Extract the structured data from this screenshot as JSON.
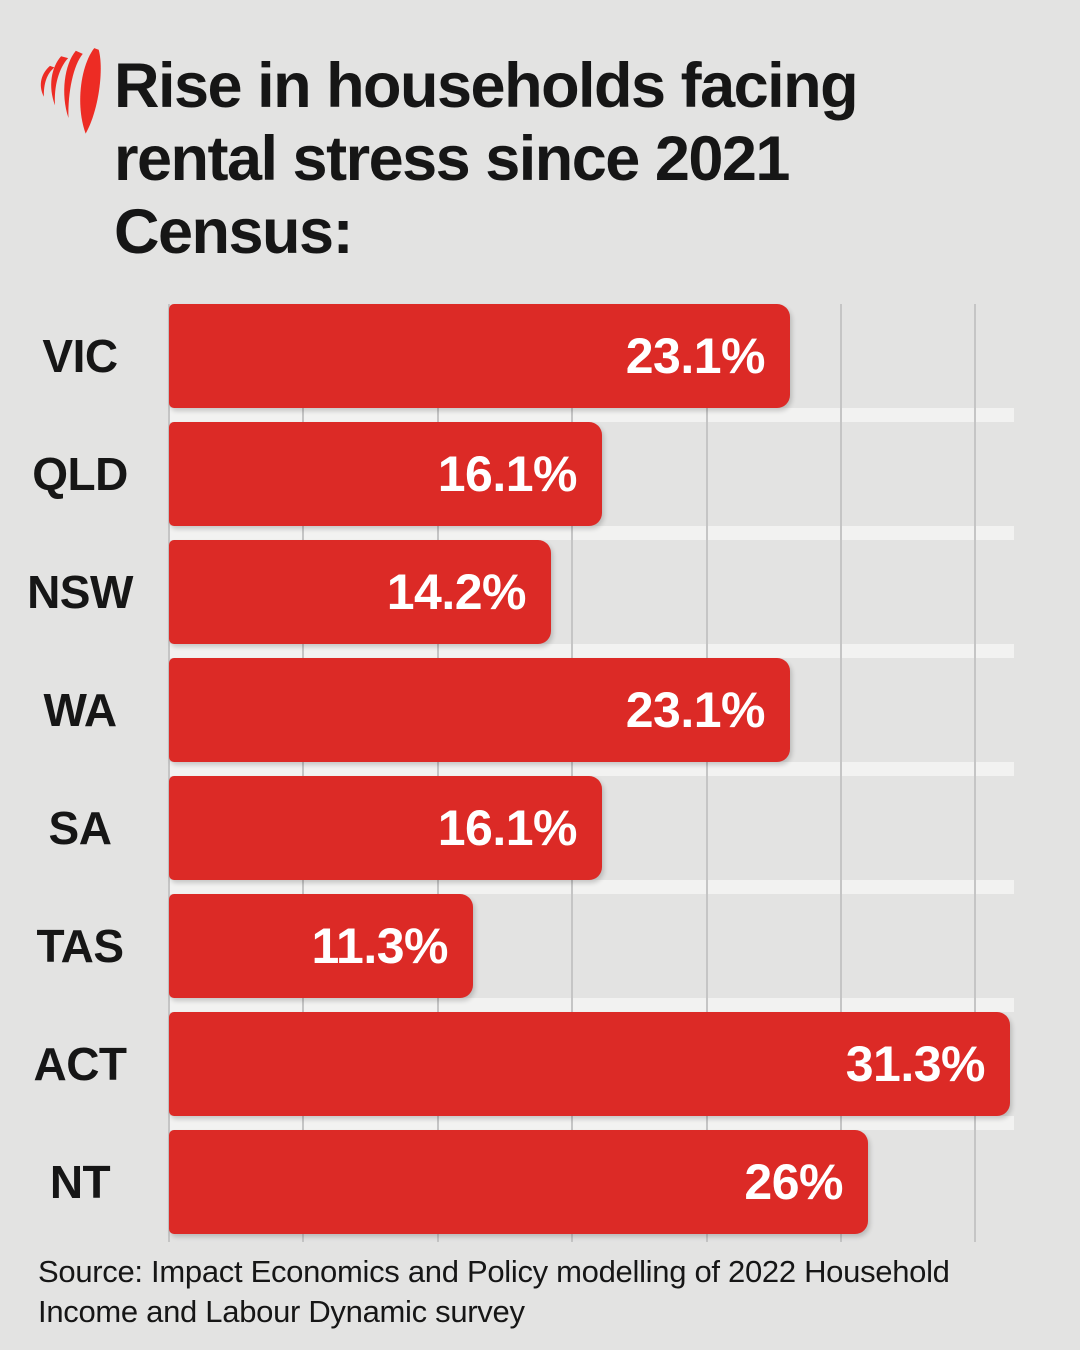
{
  "brand": {
    "name": "SBS"
  },
  "title": {
    "lines": [
      "Rise in households facing",
      "rental stress since 2021",
      "Census:"
    ]
  },
  "chart_data": {
    "type": "bar",
    "orientation": "horizontal",
    "title": "Rise in households facing rental stress since 2021 Census:",
    "categories": [
      "VIC",
      "QLD",
      "NSW",
      "WA",
      "SA",
      "TAS",
      "ACT",
      "NT"
    ],
    "values": [
      23.1,
      16.1,
      14.2,
      23.1,
      16.1,
      11.3,
      31.3,
      26
    ],
    "value_labels": [
      "23.1%",
      "16.1%",
      "14.2%",
      "23.1%",
      "16.1%",
      "11.3%",
      "31.3%",
      "26%"
    ],
    "unit": "%",
    "xlim": [
      0,
      33.9
    ],
    "gridlines_pct": [
      0,
      5,
      10,
      15,
      20,
      25,
      30
    ],
    "grid": "vertical",
    "legend": "none",
    "value_labels_position": "inside-end"
  },
  "source": {
    "lines": [
      "Source: Impact Economics and Policy modelling of 2022 Household",
      "Income and Labour Dynamic survey"
    ]
  },
  "colors": {
    "background": "#e3e3e2",
    "bar": "#dc2a26",
    "logo": "#ed2c24",
    "text": "#161616",
    "value_text": "#ffffff",
    "gridline": "#c5c5c5",
    "row_separator": "#f2f2f1"
  }
}
